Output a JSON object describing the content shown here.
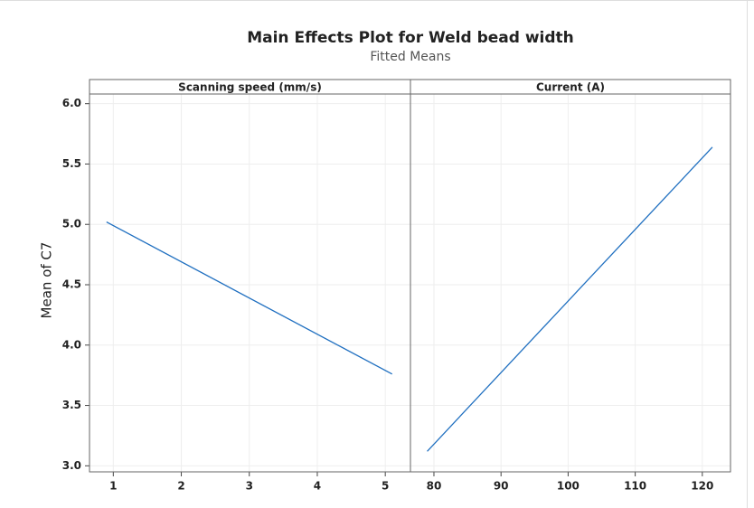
{
  "chart_data": {
    "type": "line",
    "title": "Main Effects Plot for Weld bead width",
    "subtitle": "Fitted Means",
    "y_label": "Mean of C7",
    "ylim": [
      2.95,
      6.08
    ],
    "yticks": [
      {
        "value": 3,
        "label": "3.0"
      },
      3.5,
      {
        "value": 4,
        "label": "4.0"
      },
      4.5,
      {
        "value": 5,
        "label": "5.0"
      },
      5.5,
      {
        "value": 6,
        "label": "6.0"
      }
    ],
    "grid": true,
    "color": "#1f6fc0",
    "panels": [
      {
        "title": "Scanning speed (mm/s)",
        "x": [
          0.9,
          5.1
        ],
        "values": [
          5.02,
          3.76
        ],
        "xlim": [
          0.65,
          5.37
        ],
        "xticks": [
          1,
          2,
          3,
          4,
          5
        ]
      },
      {
        "title": "Current (A)",
        "x": [
          79,
          121.5
        ],
        "values": [
          3.12,
          5.64
        ],
        "xlim": [
          76.5,
          124.2
        ],
        "xticks": [
          80,
          90,
          100,
          110,
          120
        ]
      }
    ]
  }
}
